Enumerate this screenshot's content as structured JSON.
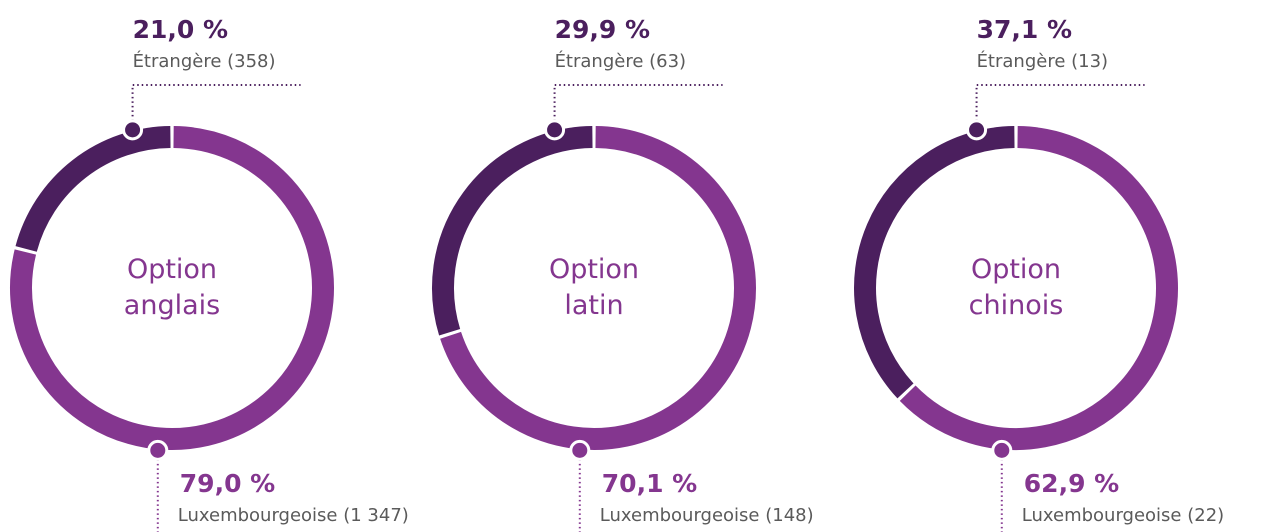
{
  "chart_data": [
    {
      "type": "donut",
      "title": "Option anglais",
      "categories": [
        "Étrangère (358)",
        "Luxembourgeoise (1 347)"
      ],
      "values": [
        21.0,
        79.0
      ],
      "value_labels": [
        "21,0 %",
        "79,0 %"
      ],
      "colors": [
        "#4b1f5e",
        "#84368f"
      ]
    },
    {
      "type": "donut",
      "title": "Option latin",
      "categories": [
        "Étrangère (63)",
        "Luxembourgeoise (148)"
      ],
      "values": [
        29.9,
        70.1
      ],
      "value_labels": [
        "29,9 %",
        "70,1 %"
      ],
      "colors": [
        "#4b1f5e",
        "#84368f"
      ]
    },
    {
      "type": "donut",
      "title": "Option chinois",
      "categories": [
        "Étrangère (13)",
        "Luxembourgeoise (22)"
      ],
      "values": [
        37.1,
        62.9
      ],
      "value_labels": [
        "37,1 %",
        "62,9 %"
      ],
      "colors": [
        "#4b1f5e",
        "#84368f"
      ]
    }
  ]
}
